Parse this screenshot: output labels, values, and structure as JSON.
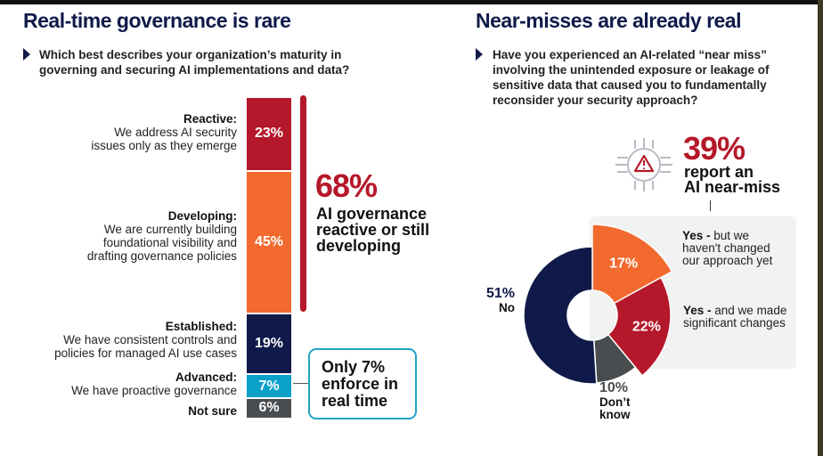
{
  "left": {
    "title": "Real-time governance is rare",
    "question": "Which best describes your organization’s maturity in governing and securing AI implementations and data?",
    "highlight": {
      "value": "68%",
      "text": "AI governance reactive or still developing"
    },
    "callout": "Only 7% enforce in real time"
  },
  "right": {
    "title": "Near-misses are already real",
    "question": "Have you experienced an AI-related “near miss” involving the unintended exposure or leakage of sensitive data that caused you to fundamentally reconsider your security approach?",
    "highlight": {
      "value": "39%",
      "line1": "report an",
      "line2": "AI near-miss",
      "icon": "circuit-warning-icon"
    }
  },
  "chart_data": [
    {
      "type": "bar",
      "stacked": true,
      "orientation": "vertical",
      "categories": [
        {
          "name": "Reactive:",
          "desc": "We address AI security issues only as they emerge",
          "value": 23,
          "label": "23%",
          "color": "#b5182a"
        },
        {
          "name": "Developing:",
          "desc": "We are currently building foundational visibility and drafting governance policies",
          "value": 45,
          "label": "45%",
          "color": "#f26a2e"
        },
        {
          "name": "Established:",
          "desc": "We have consistent controls and policies for managed AI use cases",
          "value": 19,
          "label": "19%",
          "color": "#0f1a4a"
        },
        {
          "name": "Advanced:",
          "desc": "We have proactive governance",
          "value": 7,
          "label": "7%",
          "color": "#0aa0c8"
        },
        {
          "name": "Not sure",
          "desc": "",
          "value": 6,
          "label": "6%",
          "color": "#4a4d50"
        }
      ]
    },
    {
      "type": "pie",
      "donut": true,
      "slices": [
        {
          "value": 17,
          "label": "17%",
          "bold": "Yes -",
          "text": "but we haven't changed our approach yet",
          "color": "#f26a2e"
        },
        {
          "value": 22,
          "label": "22%",
          "bold": "Yes -",
          "text": "and we made significant changes",
          "color": "#b5182a"
        },
        {
          "value": 10,
          "label": "10%",
          "bold": "Don’t know",
          "color": "#4a4d50"
        },
        {
          "value": 51,
          "label": "51%",
          "bold": "No",
          "color": "#0f1a4a"
        }
      ]
    }
  ]
}
